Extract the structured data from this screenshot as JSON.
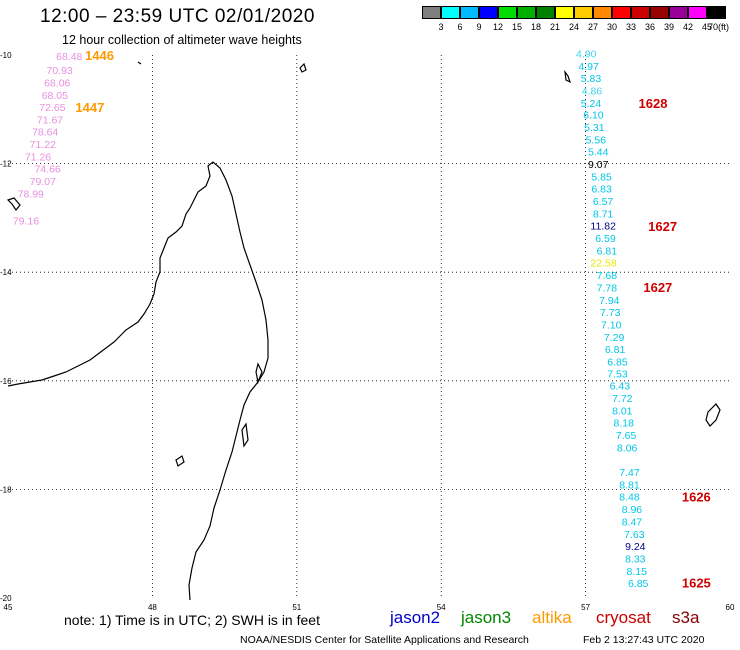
{
  "header": {
    "title": "12:00 – 23:59 UTC 02/01/2020",
    "subtitle": "12 hour collection of altimeter wave heights"
  },
  "legend": {
    "unit": "(ft)",
    "bins": [
      {
        "label": "3",
        "color": "#7f7f7f"
      },
      {
        "label": "6",
        "color": "#00ffff"
      },
      {
        "label": "9",
        "color": "#00bbff"
      },
      {
        "label": "12",
        "color": "#0000ff"
      },
      {
        "label": "15",
        "color": "#00dd00"
      },
      {
        "label": "18",
        "color": "#00b000"
      },
      {
        "label": "21",
        "color": "#008000"
      },
      {
        "label": "24",
        "color": "#ffff00"
      },
      {
        "label": "27",
        "color": "#ffcc00"
      },
      {
        "label": "30",
        "color": "#ff8800"
      },
      {
        "label": "33",
        "color": "#ff0000"
      },
      {
        "label": "36",
        "color": "#cc0000"
      },
      {
        "label": "39",
        "color": "#990000"
      },
      {
        "label": "42",
        "color": "#990099"
      },
      {
        "label": "45",
        "color": "#ff00ff"
      },
      {
        "label": "70",
        "color": "#000000"
      }
    ]
  },
  "axes": {
    "lon_ticks": [
      "45",
      "48",
      "51",
      "54",
      "57",
      "60"
    ],
    "lat_ticks": [
      "-10",
      "-12",
      "-14",
      "-16",
      "-18",
      "-20"
    ]
  },
  "colors": {
    "cyan": "#00c8e8",
    "cyan_light": "#3fd5ee",
    "blue": "#00008b",
    "yellow": "#e8e800",
    "pink": "#e890e0",
    "orange": "#ff9900",
    "red": "#d00000",
    "black": "#000000"
  },
  "west_track": {
    "values": [
      {
        "text": "68.48",
        "x": 46.0,
        "y": -10.02
      },
      {
        "text": "70.93",
        "x": 45.8,
        "y": -10.28
      },
      {
        "text": "68.06",
        "x": 45.75,
        "y": -10.51
      },
      {
        "text": "68.05",
        "x": 45.7,
        "y": -10.74
      },
      {
        "text": "72.65",
        "x": 45.65,
        "y": -10.96
      },
      {
        "text": "71.67",
        "x": 45.6,
        "y": -11.19
      },
      {
        "text": "78.64",
        "x": 45.5,
        "y": -11.41
      },
      {
        "text": "71.22",
        "x": 45.45,
        "y": -11.64
      },
      {
        "text": "71.26",
        "x": 45.35,
        "y": -11.87
      },
      {
        "text": "74.66",
        "x": 45.55,
        "y": -12.09
      },
      {
        "text": "79.07",
        "x": 45.45,
        "y": -12.32
      },
      {
        "text": "78.99",
        "x": 45.2,
        "y": -12.55
      },
      {
        "text": "79.16",
        "x": 45.1,
        "y": -13.05
      }
    ],
    "passes": [
      {
        "text": "1446",
        "x": 46.6,
        "y": -10.02
      },
      {
        "text": "1447",
        "x": 46.4,
        "y": -10.98
      }
    ]
  },
  "east_track": {
    "values": [
      {
        "text": "4.90",
        "x": 56.8,
        "y": -9.97,
        "c": "cyan_light"
      },
      {
        "text": "4.97",
        "x": 56.85,
        "y": -10.2,
        "c": "cyan"
      },
      {
        "text": "5.83",
        "x": 56.9,
        "y": -10.42,
        "c": "cyan"
      },
      {
        "text": "4.86",
        "x": 56.92,
        "y": -10.65,
        "c": "cyan_light"
      },
      {
        "text": "5.24",
        "x": 56.9,
        "y": -10.88,
        "c": "cyan"
      },
      {
        "text": "6.10",
        "x": 56.95,
        "y": -11.1,
        "c": "cyan"
      },
      {
        "text": "5.31",
        "x": 56.97,
        "y": -11.33,
        "c": "cyan"
      },
      {
        "text": "5.56",
        "x": 57.0,
        "y": -11.56,
        "c": "cyan"
      },
      {
        "text": "5.44",
        "x": 57.05,
        "y": -11.78,
        "c": "cyan"
      },
      {
        "text": "9.07",
        "x": 57.05,
        "y": -12.01,
        "c": "black"
      },
      {
        "text": "5.85",
        "x": 57.12,
        "y": -12.24,
        "c": "cyan"
      },
      {
        "text": "6.83",
        "x": 57.12,
        "y": -12.46,
        "c": "cyan"
      },
      {
        "text": "6.57",
        "x": 57.15,
        "y": -12.69,
        "c": "cyan"
      },
      {
        "text": "8.71",
        "x": 57.15,
        "y": -12.92,
        "c": "cyan"
      },
      {
        "text": "11.82",
        "x": 57.1,
        "y": -13.14,
        "c": "blue"
      },
      {
        "text": "6.59",
        "x": 57.2,
        "y": -13.37,
        "c": "cyan"
      },
      {
        "text": "6.81",
        "x": 57.23,
        "y": -13.6,
        "c": "cyan"
      },
      {
        "text": "22.58",
        "x": 57.1,
        "y": -13.82,
        "c": "yellow"
      },
      {
        "text": "7.68",
        "x": 57.23,
        "y": -14.05,
        "c": "cyan"
      },
      {
        "text": "7.78",
        "x": 57.23,
        "y": -14.28,
        "c": "cyan"
      },
      {
        "text": "7.94",
        "x": 57.28,
        "y": -14.51,
        "c": "cyan"
      },
      {
        "text": "7.73",
        "x": 57.3,
        "y": -14.73,
        "c": "cyan"
      },
      {
        "text": "7.10",
        "x": 57.32,
        "y": -14.96,
        "c": "cyan"
      },
      {
        "text": "7.29",
        "x": 57.38,
        "y": -15.19,
        "c": "cyan"
      },
      {
        "text": "6.81",
        "x": 57.4,
        "y": -15.41,
        "c": "cyan"
      },
      {
        "text": "6.85",
        "x": 57.45,
        "y": -15.64,
        "c": "cyan"
      },
      {
        "text": "7.53",
        "x": 57.45,
        "y": -15.87,
        "c": "cyan"
      },
      {
        "text": "6.43",
        "x": 57.5,
        "y": -16.09,
        "c": "cyan"
      },
      {
        "text": "7.72",
        "x": 57.55,
        "y": -16.32,
        "c": "cyan"
      },
      {
        "text": "8.01",
        "x": 57.55,
        "y": -16.55,
        "c": "cyan"
      },
      {
        "text": "8.18",
        "x": 57.58,
        "y": -16.77,
        "c": "cyan"
      },
      {
        "text": "7.65",
        "x": 57.63,
        "y": -17.0,
        "c": "cyan"
      },
      {
        "text": "8.06",
        "x": 57.65,
        "y": -17.23,
        "c": "cyan"
      },
      {
        "text": "7.47",
        "x": 57.7,
        "y": -17.68,
        "c": "cyan"
      },
      {
        "text": "8.81",
        "x": 57.7,
        "y": -17.91,
        "c": "cyan"
      },
      {
        "text": "8.48",
        "x": 57.7,
        "y": -18.13,
        "c": "cyan"
      },
      {
        "text": "8.96",
        "x": 57.75,
        "y": -18.36,
        "c": "cyan"
      },
      {
        "text": "8.47",
        "x": 57.75,
        "y": -18.59,
        "c": "cyan"
      },
      {
        "text": "7.63",
        "x": 57.8,
        "y": -18.82,
        "c": "cyan"
      },
      {
        "text": "9.24",
        "x": 57.82,
        "y": -19.04,
        "c": "blue"
      },
      {
        "text": "8.33",
        "x": 57.82,
        "y": -19.27,
        "c": "cyan"
      },
      {
        "text": "8.15",
        "x": 57.85,
        "y": -19.5,
        "c": "cyan"
      },
      {
        "text": "6.85",
        "x": 57.88,
        "y": -19.72,
        "c": "cyan"
      }
    ],
    "passes": [
      {
        "text": "1628",
        "x": 58.1,
        "y": -10.9
      },
      {
        "text": "1627",
        "x": 58.3,
        "y": -13.17
      },
      {
        "text": "1627",
        "x": 58.2,
        "y": -14.29
      },
      {
        "text": "1626",
        "x": 59.0,
        "y": -18.15
      },
      {
        "text": "1625",
        "x": 59.0,
        "y": -19.73
      }
    ]
  },
  "footer": {
    "note": "note:  1) Time is in UTC;  2) SWH is in feet",
    "satellites": [
      {
        "name": "jason2",
        "color": "#0000cc"
      },
      {
        "name": "jason3",
        "color": "#008800"
      },
      {
        "name": "altika",
        "color": "#ff9900"
      },
      {
        "name": "cryosat",
        "color": "#cc0000"
      },
      {
        "name": "s3a",
        "color": "#880000"
      }
    ],
    "credit": "NOAA/NESDIS Center for Satellite Applications and Research",
    "timestamp": "Feb  2 13:27:43 UTC 2020"
  }
}
